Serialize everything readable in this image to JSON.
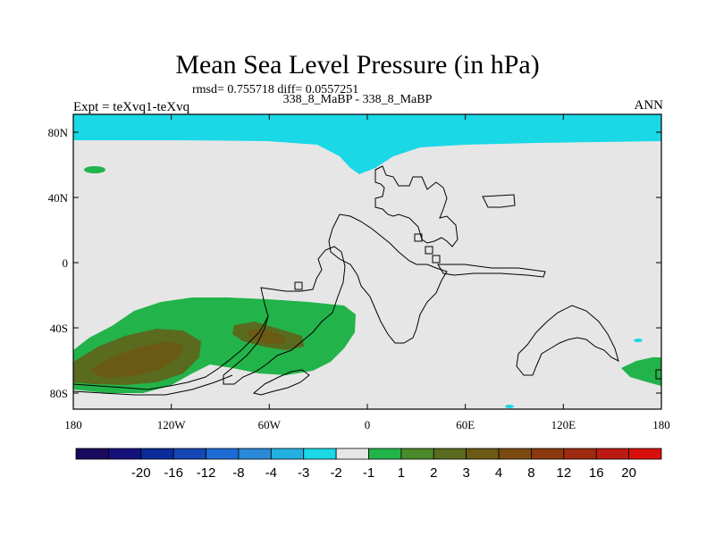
{
  "title": "Mean Sea Level Pressure (in hPa)",
  "stats_text": "rmsd= 0.755718 diff= 0.0557251",
  "case_text": "338_8_MaBP - 338_8_MaBP",
  "expt_text": "Expt = teXvq1-teXvq",
  "season": "ANN",
  "lat_ticks": [
    "80N",
    "40N",
    "0",
    "40S",
    "80S"
  ],
  "lon_ticks": [
    "180",
    "120W",
    "60W",
    "0",
    "60E",
    "120E",
    "180"
  ],
  "colorbar": {
    "labels": [
      "-20",
      "-16",
      "-12",
      "-8",
      "-4",
      "-3",
      "-2",
      "-1",
      "1",
      "2",
      "3",
      "4",
      "8",
      "12",
      "16",
      "20"
    ],
    "colors": [
      "#1a0a5e",
      "#15117a",
      "#0c2a9a",
      "#1446b4",
      "#1e6ad4",
      "#2b8ad8",
      "#23b0e0",
      "#1ad8e6",
      "#e6e6e6",
      "#22b34a",
      "#4b8a2a",
      "#5a6a1e",
      "#6b5a14",
      "#7a4a10",
      "#8a3a0e",
      "#9e2a10",
      "#bb1a12",
      "#d8100c"
    ]
  },
  "colors": {
    "ocean_bg": "#e6e6e6",
    "low": "#1ad8e6",
    "high1": "#22b34a",
    "high2": "#5a6a1e",
    "high3": "#6b5a14"
  }
}
